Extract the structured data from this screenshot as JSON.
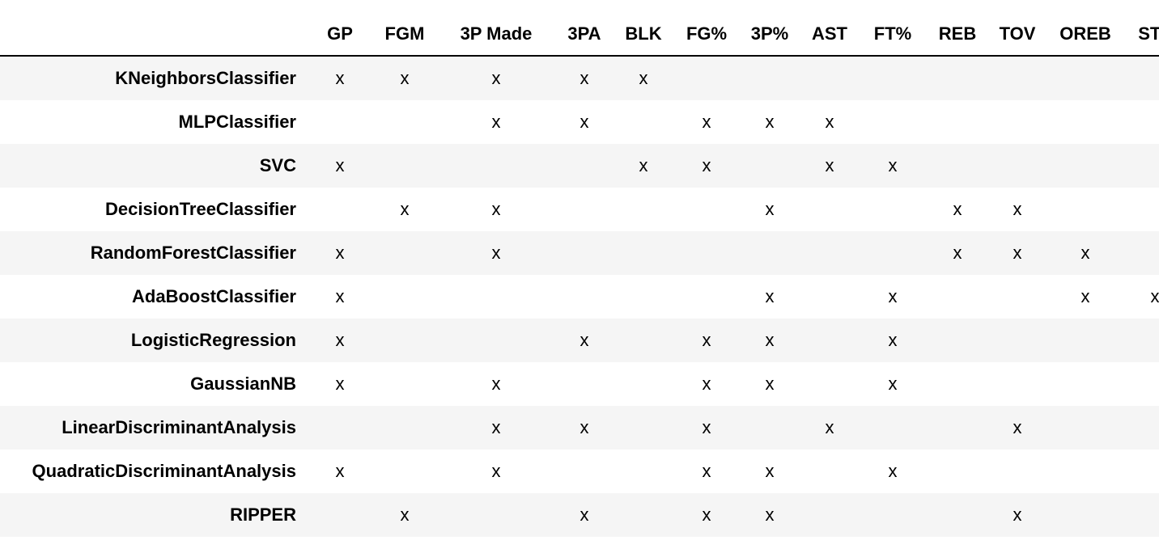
{
  "columns": [
    "GP",
    "FGM",
    "3P Made",
    "3PA",
    "BLK",
    "FG%",
    "3P%",
    "AST",
    "FT%",
    "REB",
    "TOV",
    "OREB",
    "STL"
  ],
  "rows": [
    {
      "model": "KNeighborsClassifier",
      "cells": [
        "x",
        "x",
        "x",
        "x",
        "x",
        "",
        "",
        "",
        "",
        "",
        "",
        "",
        ""
      ]
    },
    {
      "model": "MLPClassifier",
      "cells": [
        "",
        "",
        "x",
        "x",
        "",
        "x",
        "x",
        "x",
        "",
        "",
        "",
        "",
        ""
      ]
    },
    {
      "model": "SVC",
      "cells": [
        "x",
        "",
        "",
        "",
        "x",
        "x",
        "",
        "x",
        "x",
        "",
        "",
        "",
        ""
      ]
    },
    {
      "model": "DecisionTreeClassifier",
      "cells": [
        "",
        "x",
        "x",
        "",
        "",
        "",
        "x",
        "",
        "",
        "x",
        "x",
        "",
        ""
      ]
    },
    {
      "model": "RandomForestClassifier",
      "cells": [
        "x",
        "",
        "x",
        "",
        "",
        "",
        "",
        "",
        "",
        "x",
        "x",
        "x",
        ""
      ]
    },
    {
      "model": "AdaBoostClassifier",
      "cells": [
        "x",
        "",
        "",
        "",
        "",
        "",
        "x",
        "",
        "x",
        "",
        "",
        "x",
        "x"
      ]
    },
    {
      "model": "LogisticRegression",
      "cells": [
        "x",
        "",
        "",
        "x",
        "",
        "x",
        "x",
        "",
        "x",
        "",
        "",
        "",
        ""
      ]
    },
    {
      "model": "GaussianNB",
      "cells": [
        "x",
        "",
        "x",
        "",
        "",
        "x",
        "x",
        "",
        "x",
        "",
        "",
        "",
        ""
      ]
    },
    {
      "model": "LinearDiscriminantAnalysis",
      "cells": [
        "",
        "",
        "x",
        "x",
        "",
        "x",
        "",
        "x",
        "",
        "",
        "x",
        "",
        ""
      ]
    },
    {
      "model": "QuadraticDiscriminantAnalysis",
      "cells": [
        "x",
        "",
        "x",
        "",
        "",
        "x",
        "x",
        "",
        "x",
        "",
        "",
        "",
        ""
      ]
    },
    {
      "model": "RIPPER",
      "cells": [
        "",
        "x",
        "",
        "x",
        "",
        "x",
        "x",
        "",
        "",
        "",
        "x",
        "",
        ""
      ]
    }
  ]
}
